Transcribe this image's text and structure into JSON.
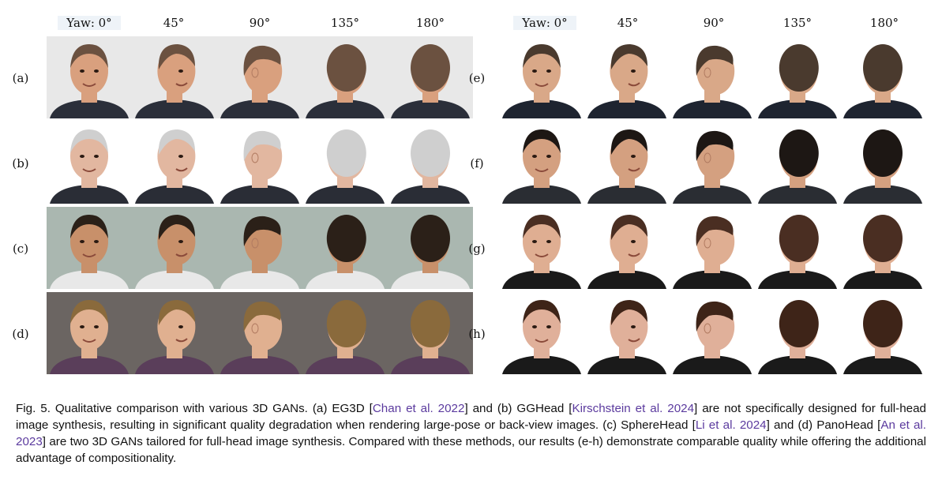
{
  "left_panel": {
    "yaw_labels": [
      "Yaw: 0°",
      "45°",
      "90°",
      "135°",
      "180°"
    ],
    "rows": [
      {
        "label": "(a)",
        "bg": "#e8e8e8",
        "skin": "#d9a07e",
        "hair": "#6b5140",
        "cloth": "#2b2f3a"
      },
      {
        "label": "(b)",
        "bg": "#ffffff",
        "skin": "#e2b7a0",
        "hair": "#cfcfcf",
        "cloth": "#2a2d36"
      },
      {
        "label": "(c)",
        "bg": "#aab7b0",
        "skin": "#c8906a",
        "hair": "#2b2018",
        "cloth": "#e8e8e8"
      },
      {
        "label": "(d)",
        "bg": "#6b6562",
        "skin": "#e0b090",
        "hair": "#8a6a3c",
        "cloth": "#5a3e5a"
      }
    ]
  },
  "right_panel": {
    "yaw_labels": [
      "Yaw: 0°",
      "45°",
      "90°",
      "135°",
      "180°"
    ],
    "rows": [
      {
        "label": "(e)",
        "bg": "#ffffff",
        "skin": "#d9a888",
        "hair": "#4a3a2e",
        "cloth": "#1e2430"
      },
      {
        "label": "(f)",
        "bg": "#ffffff",
        "skin": "#d4a080",
        "hair": "#1d1714",
        "cloth": "#2a2d33"
      },
      {
        "label": "(g)",
        "bg": "#ffffff",
        "skin": "#dfae92",
        "hair": "#4a2e22",
        "cloth": "#1a1a1a"
      },
      {
        "label": "(h)",
        "bg": "#ffffff",
        "skin": "#e0b09a",
        "hair": "#3e2418",
        "cloth": "#1a1a1a"
      }
    ]
  },
  "caption": {
    "p1": "Fig. 5.  Qualitative comparison with various 3D GANs. (a) EG3D [",
    "c1": "Chan et al. 2022",
    "p2": "] and (b) GGHead [",
    "c2": "Kirschstein et al. 2024",
    "p3": "] are not specifically designed for full-head image synthesis, resulting in significant quality degradation when rendering large-pose or back-view images. (c) SphereHead [",
    "c3": "Li et al. 2024",
    "p4": "] and (d) PanoHead [",
    "c4": "An et al. 2023",
    "p5": "] are two 3D GANs tailored for full-head image synthesis. Compared with these methods, our results (e-h) demonstrate comparable quality while offering the additional advantage of compositionality."
  }
}
